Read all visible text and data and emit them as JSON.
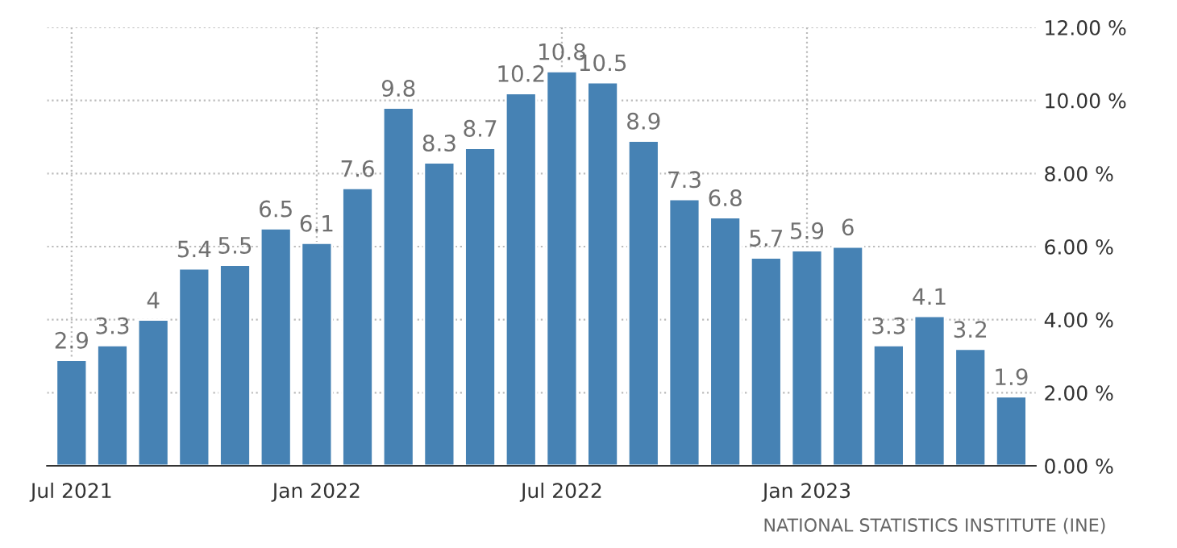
{
  "chart_data": {
    "type": "bar",
    "categories": [
      "Jul 2021",
      null,
      null,
      null,
      null,
      null,
      "Jan 2022",
      null,
      null,
      null,
      null,
      null,
      "Jul 2022",
      null,
      null,
      null,
      null,
      null,
      "Jan 2023",
      null,
      null,
      null,
      null,
      null
    ],
    "values": [
      2.9,
      3.3,
      4,
      5.4,
      5.5,
      6.5,
      6.1,
      7.6,
      9.8,
      8.3,
      8.7,
      10.2,
      10.8,
      10.5,
      8.9,
      7.3,
      6.8,
      5.7,
      5.9,
      6,
      3.3,
      4.1,
      3.2,
      1.9
    ],
    "color": "#4682b4",
    "ylim": [
      0,
      12
    ],
    "yticks": [
      {
        "value": 0,
        "label": "0.00 %"
      },
      {
        "value": 2,
        "label": "2.00 %"
      },
      {
        "value": 4,
        "label": "4.00 %"
      },
      {
        "value": 6,
        "label": "6.00 %"
      },
      {
        "value": 8,
        "label": "8.00 %"
      },
      {
        "value": 10,
        "label": "10.00 %"
      },
      {
        "value": 12,
        "label": "12.00 %"
      }
    ],
    "grid": true,
    "data_labels": true,
    "annotations": [
      "NATIONAL STATISTICS INSTITUTE (INE)"
    ]
  }
}
